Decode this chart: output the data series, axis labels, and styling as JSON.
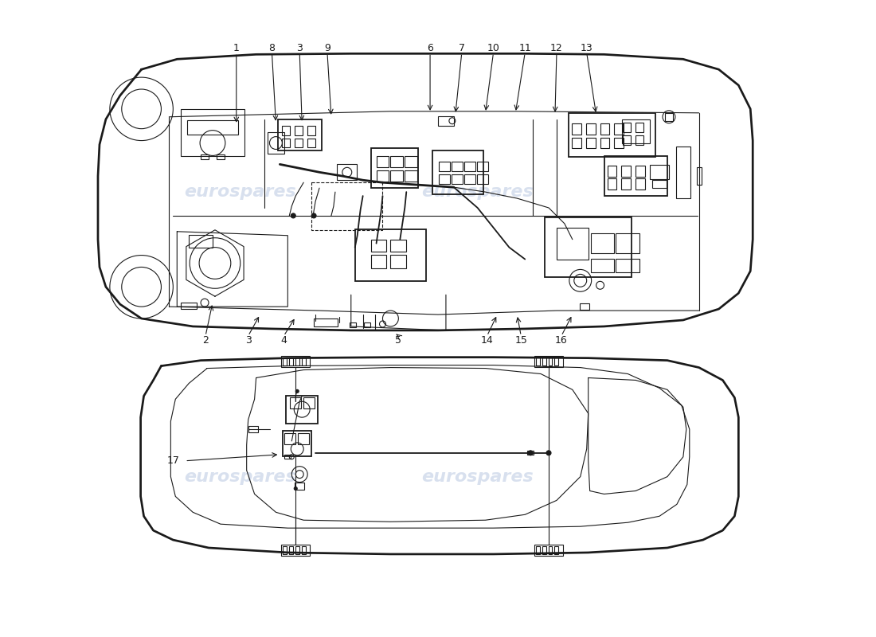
{
  "background_color": "#ffffff",
  "line_color": "#1a1a1a",
  "watermark_color": "#c8d4e8",
  "watermark_text": "eurospares",
  "lw_main": 1.3,
  "lw_thin": 0.8,
  "lw_thick": 2.0
}
